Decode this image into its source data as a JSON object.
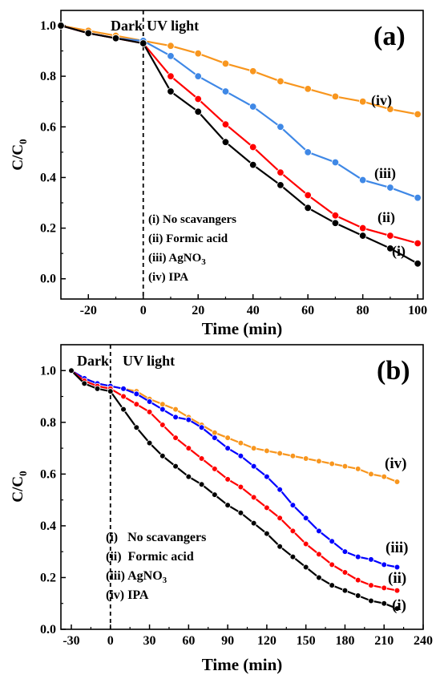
{
  "chart_data": [
    {
      "type": "line",
      "panel_label": "(a)",
      "xlabel": "Time (min)",
      "ylabel": "C/C",
      "ylabel_sub": "0",
      "xlim": [
        -30,
        102
      ],
      "ylim": [
        -0.08,
        1.06
      ],
      "xticks": [
        -20,
        0,
        20,
        40,
        60,
        80,
        100
      ],
      "yticks": [
        0.0,
        0.2,
        0.4,
        0.6,
        0.8,
        1.0
      ],
      "region_labels": {
        "dark": "Dark",
        "light": "UV light"
      },
      "legend": [
        {
          "text": "(i) No scavangers"
        },
        {
          "text": "(ii) Formic acid"
        },
        {
          "text": "(iii) AgNO",
          "sub": "3"
        },
        {
          "text": "(iv) IPA"
        }
      ],
      "series": [
        {
          "tag": "(i)",
          "color": "#000000",
          "x": [
            -30,
            -20,
            -10,
            0,
            10,
            20,
            30,
            40,
            50,
            60,
            70,
            80,
            90,
            100
          ],
          "y": [
            1.0,
            0.97,
            0.95,
            0.93,
            0.74,
            0.66,
            0.54,
            0.45,
            0.37,
            0.28,
            0.22,
            0.17,
            0.12,
            0.06
          ]
        },
        {
          "tag": "(ii)",
          "color": "#ff0000",
          "x": [
            -30,
            -20,
            -10,
            0,
            10,
            20,
            30,
            40,
            50,
            60,
            70,
            80,
            90,
            100
          ],
          "y": [
            1.0,
            0.97,
            0.95,
            0.93,
            0.8,
            0.71,
            0.61,
            0.52,
            0.42,
            0.33,
            0.25,
            0.2,
            0.17,
            0.14
          ]
        },
        {
          "tag": "(iii)",
          "color": "#3f88e6",
          "x": [
            -30,
            -20,
            -10,
            0,
            10,
            20,
            30,
            40,
            50,
            60,
            70,
            80,
            90,
            100
          ],
          "y": [
            1.0,
            0.97,
            0.95,
            0.94,
            0.88,
            0.8,
            0.74,
            0.68,
            0.6,
            0.5,
            0.46,
            0.39,
            0.36,
            0.32
          ]
        },
        {
          "tag": "(iv)",
          "color": "#f8961e",
          "x": [
            -30,
            -20,
            -10,
            0,
            10,
            20,
            30,
            40,
            50,
            60,
            70,
            80,
            90,
            100
          ],
          "y": [
            1.0,
            0.98,
            0.96,
            0.94,
            0.92,
            0.89,
            0.85,
            0.82,
            0.78,
            0.75,
            0.72,
            0.7,
            0.67,
            0.65
          ]
        }
      ]
    },
    {
      "type": "line",
      "panel_label": "(b)",
      "xlabel": "Time (min)",
      "ylabel": "C/C",
      "ylabel_sub": "0",
      "xlim": [
        -38,
        240
      ],
      "ylim": [
        0.0,
        1.1
      ],
      "xticks": [
        -30,
        0,
        30,
        60,
        90,
        120,
        150,
        180,
        210,
        240
      ],
      "yticks": [
        0.0,
        0.2,
        0.4,
        0.6,
        0.8,
        1.0
      ],
      "region_labels": {
        "dark": "Dark",
        "light": "UV light"
      },
      "legend": [
        {
          "text": "(i)   No scavangers"
        },
        {
          "text": "(ii)  Formic acid"
        },
        {
          "text": "(iii) AgNO",
          "sub": "3"
        },
        {
          "text": "(iv) IPA"
        }
      ],
      "series": [
        {
          "tag": "(i)",
          "color": "#000000",
          "x": [
            -30,
            -20,
            -10,
            0,
            10,
            20,
            30,
            40,
            50,
            60,
            70,
            80,
            90,
            100,
            110,
            120,
            130,
            140,
            150,
            160,
            170,
            180,
            190,
            200,
            210,
            220
          ],
          "y": [
            1.0,
            0.95,
            0.93,
            0.92,
            0.85,
            0.78,
            0.72,
            0.67,
            0.63,
            0.59,
            0.56,
            0.52,
            0.48,
            0.45,
            0.41,
            0.37,
            0.32,
            0.28,
            0.24,
            0.2,
            0.17,
            0.15,
            0.13,
            0.11,
            0.1,
            0.08
          ]
        },
        {
          "tag": "(ii)",
          "color": "#ff0000",
          "x": [
            -30,
            -20,
            -10,
            0,
            10,
            20,
            30,
            40,
            50,
            60,
            70,
            80,
            90,
            100,
            110,
            120,
            130,
            140,
            150,
            160,
            170,
            180,
            190,
            200,
            210,
            220
          ],
          "y": [
            1.0,
            0.96,
            0.94,
            0.93,
            0.9,
            0.87,
            0.84,
            0.79,
            0.74,
            0.7,
            0.66,
            0.62,
            0.58,
            0.55,
            0.51,
            0.47,
            0.43,
            0.38,
            0.33,
            0.29,
            0.25,
            0.22,
            0.19,
            0.17,
            0.16,
            0.15
          ]
        },
        {
          "tag": "(iii)",
          "color": "#0000ff",
          "x": [
            -30,
            -20,
            -10,
            0,
            10,
            20,
            30,
            40,
            50,
            60,
            70,
            80,
            90,
            100,
            110,
            120,
            130,
            140,
            150,
            160,
            170,
            180,
            190,
            200,
            210,
            220
          ],
          "y": [
            1.0,
            0.97,
            0.95,
            0.94,
            0.93,
            0.91,
            0.88,
            0.85,
            0.82,
            0.81,
            0.78,
            0.74,
            0.7,
            0.67,
            0.63,
            0.59,
            0.54,
            0.48,
            0.43,
            0.38,
            0.34,
            0.3,
            0.28,
            0.27,
            0.25,
            0.24
          ]
        },
        {
          "tag": "(iv)",
          "color": "#f8961e",
          "x": [
            -30,
            -20,
            -10,
            0,
            10,
            20,
            30,
            40,
            50,
            60,
            70,
            80,
            90,
            100,
            110,
            120,
            130,
            140,
            150,
            160,
            170,
            180,
            190,
            200,
            210,
            220
          ],
          "y": [
            1.0,
            0.97,
            0.95,
            0.94,
            0.93,
            0.92,
            0.89,
            0.87,
            0.85,
            0.82,
            0.79,
            0.76,
            0.74,
            0.72,
            0.7,
            0.69,
            0.68,
            0.67,
            0.66,
            0.65,
            0.64,
            0.63,
            0.62,
            0.6,
            0.59,
            0.57
          ]
        }
      ]
    }
  ]
}
